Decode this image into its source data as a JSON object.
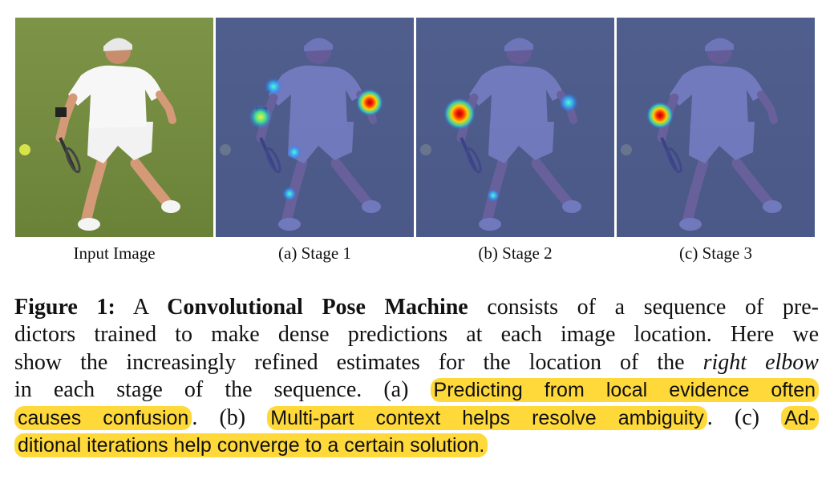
{
  "figure": {
    "panels": [
      {
        "caption": "Input Image",
        "heatmap": "none"
      },
      {
        "caption": "(a) Stage 1",
        "heatmap": "scattered"
      },
      {
        "caption": "(b) Stage 2",
        "heatmap": "two-peaks"
      },
      {
        "caption": "(c) Stage 3",
        "heatmap": "single-peak"
      }
    ],
    "caption": {
      "label": "Figure 1:",
      "t1": " A ",
      "title": "Convolutional Pose Machine",
      "t2": " consists of a sequence of pre-",
      "line2": "dictors trained to make dense predictions at each image location. Here we",
      "line3a": "show the increasingly refined estimates for the location of the ",
      "line3b": "right elbow",
      "line4a": "in each stage of the sequence.  (a) ",
      "hl_a1": "Predicting from local evidence often",
      "hl_a2": "causes confusion",
      "line5b": ". (b) ",
      "hl_b": "Multi-part context helps resolve ambiguity",
      "line5d": ". (c) ",
      "hl_c1": "Ad-",
      "hl_c2": "ditional iterations help converge to a certain solution."
    },
    "colors": {
      "highlight": "#ffd93a",
      "grass": "#6f8b3f",
      "overlay": "#3e4aa8"
    }
  }
}
